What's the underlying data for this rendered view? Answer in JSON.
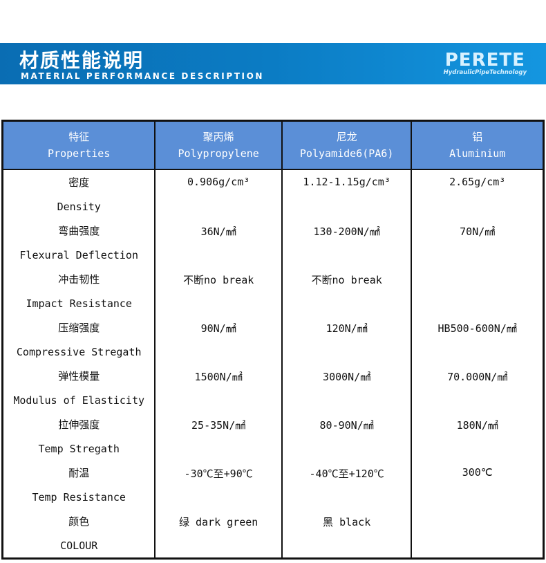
{
  "banner": {
    "title": "材质性能说明",
    "subtitle": "MATERIAL PERFORMANCE DESCRIPTION",
    "logo_name": "PERETE",
    "logo_tagline": "HydraulicPipeTechnology"
  },
  "headers": [
    {
      "zh": "特征",
      "en": "Properties"
    },
    {
      "zh": "聚丙烯",
      "en": "Polypropylene"
    },
    {
      "zh": "尼龙",
      "en": "Polyamide6(PA6)"
    },
    {
      "zh": "铝",
      "en": "Aluminium"
    }
  ],
  "rows": [
    {
      "zh": "密度",
      "en": "Density",
      "pp": "0.906g/cm³",
      "pa": "1.12-1.15g/cm³",
      "al": "2.65g/cm³"
    },
    {
      "zh": "弯曲强度",
      "en": "Flexural Deflection",
      "pp": "36N/㎟",
      "pa": "130-200N/㎟",
      "al": "70N/㎟"
    },
    {
      "zh": "冲击韧性",
      "en": "Impact Resistance",
      "pp": "不断no break",
      "pa": "不断no break",
      "al": ""
    },
    {
      "zh": "压缩强度",
      "en": "Compressive Stregath",
      "pp": "90N/㎟",
      "pa": "120N/㎟",
      "al": "HB500-600N/㎟"
    },
    {
      "zh": "弹性模量",
      "en": "Modulus of Elasticity",
      "pp": "1500N/㎟",
      "pa": "3000N/㎟",
      "al": "70.000N/㎟"
    },
    {
      "zh": "拉伸强度",
      "en": "Temp Stregath",
      "pp": "25-35N/㎟",
      "pa": "80-90N/㎟",
      "al": "180N/㎟"
    },
    {
      "zh": "耐温",
      "en": "Temp Resistance",
      "pp": "-30℃至+90℃",
      "pa": "-40℃至+120℃",
      "al": "300℃"
    },
    {
      "zh": "颜色",
      "en": "COLOUR",
      "pp": "绿 dark green",
      "pa": "黑 black",
      "al": ""
    }
  ]
}
